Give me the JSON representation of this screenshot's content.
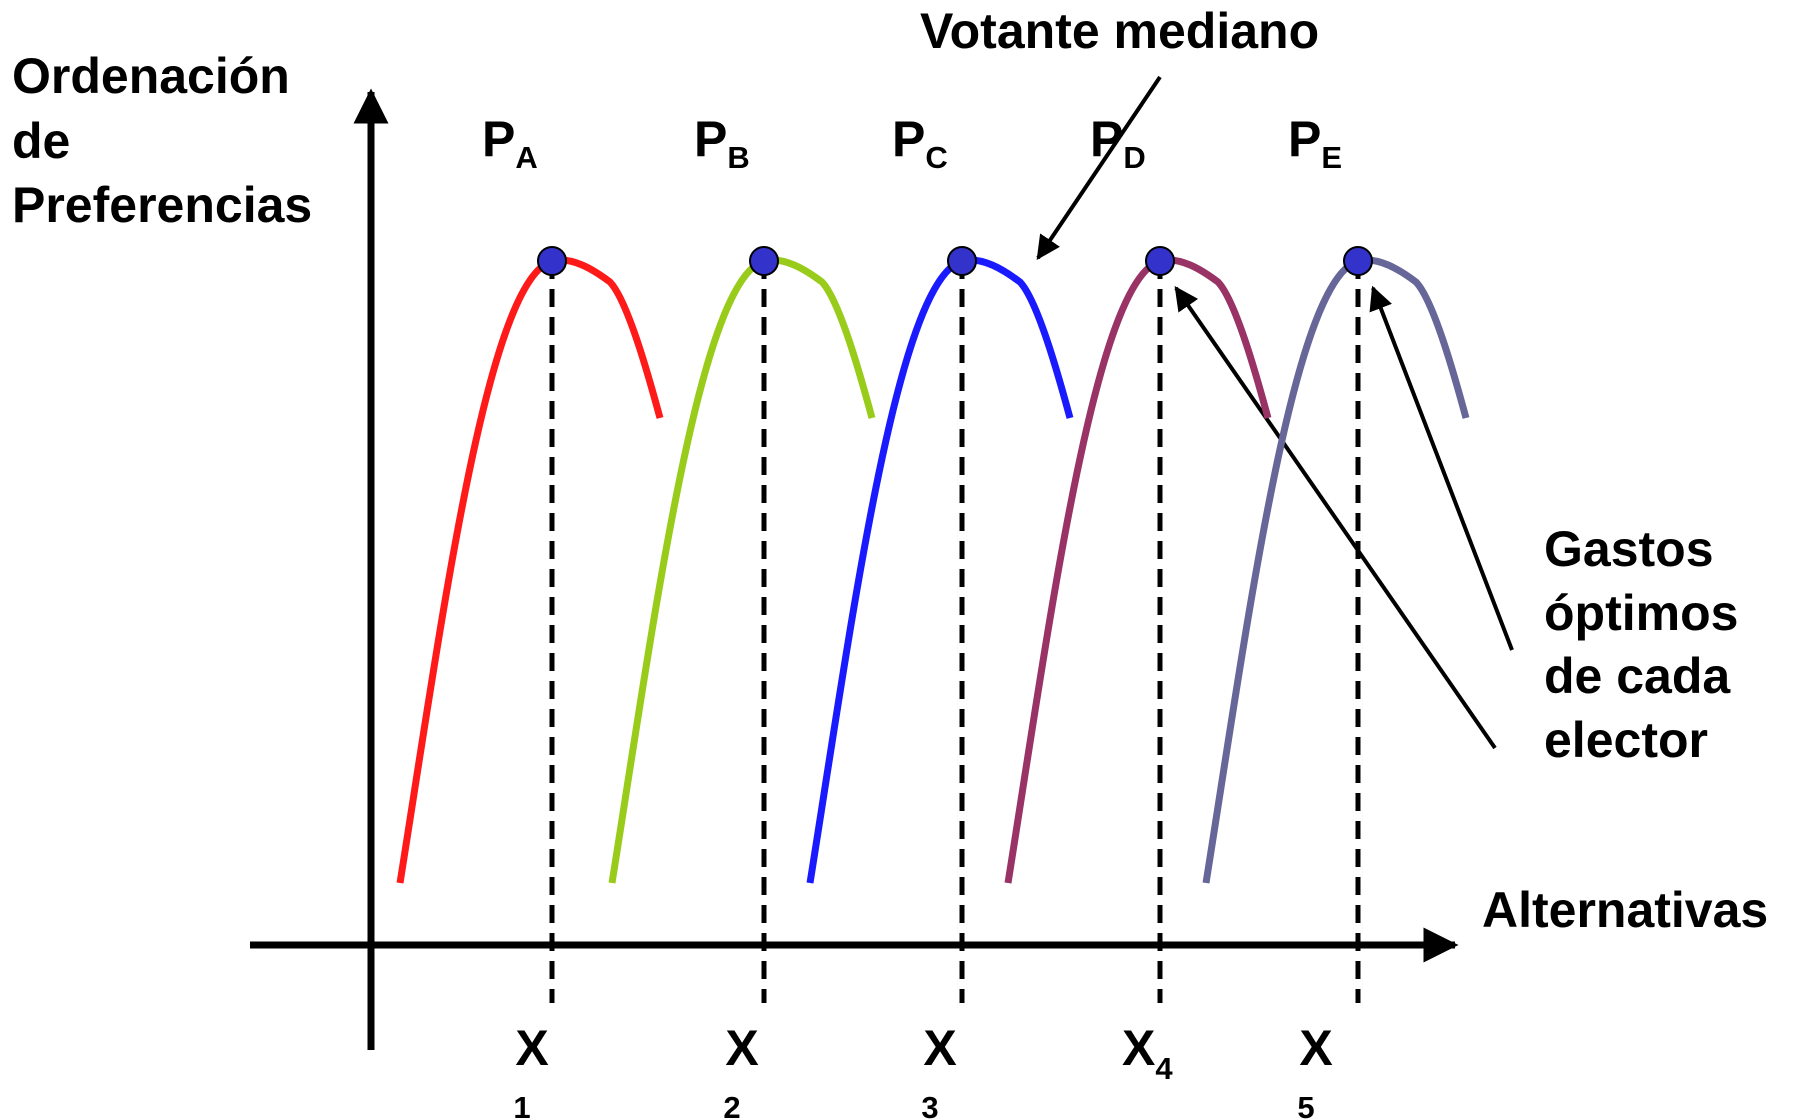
{
  "y_axis_label": [
    "Ordenación",
    "de",
    "Preferencias"
  ],
  "x_axis_label": "Alternativas",
  "median_voter_label": "Votante mediano",
  "optimal_spending_label": [
    "Gastos",
    "óptimos",
    "de cada",
    "elector"
  ],
  "voters": [
    {
      "letter": "P",
      "sub": "A",
      "color": "#ff1a1a"
    },
    {
      "letter": "P",
      "sub": "B",
      "color": "#99cc1a"
    },
    {
      "letter": "P",
      "sub": "C",
      "color": "#1a1aff"
    },
    {
      "letter": "P",
      "sub": "D",
      "color": "#993366"
    },
    {
      "letter": "P",
      "sub": "E",
      "color": "#666699"
    }
  ],
  "alternatives": [
    {
      "letter": "X",
      "sub": "1"
    },
    {
      "letter": "X",
      "sub": "2"
    },
    {
      "letter": "X",
      "sub": "3"
    },
    {
      "letter": "X",
      "sub": "4"
    },
    {
      "letter": "X",
      "sub": "5"
    }
  ],
  "peak_marker_color": "#3333cc"
}
